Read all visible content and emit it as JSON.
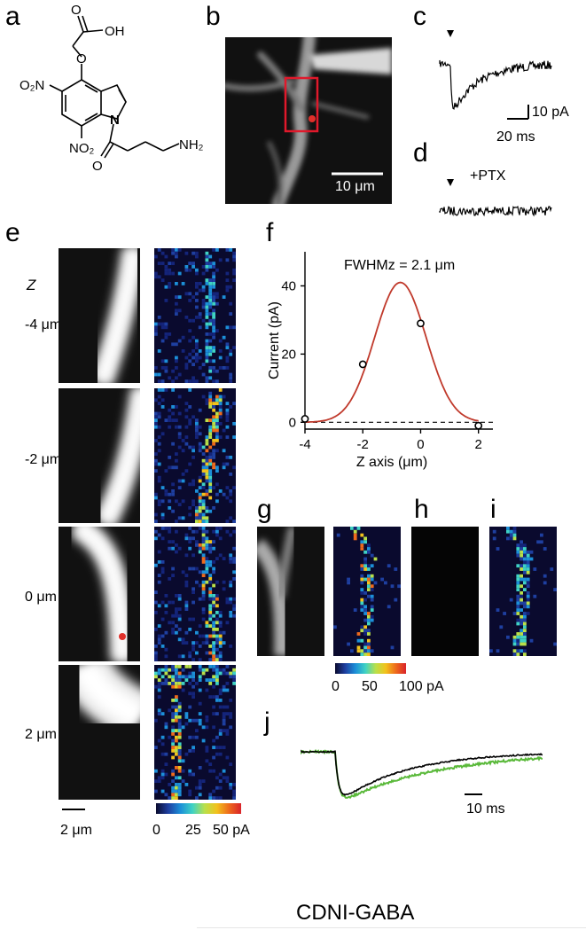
{
  "panels": {
    "a": "a",
    "b": "b",
    "c": "c",
    "d": "d",
    "e": "e",
    "f": "f",
    "g": "g",
    "h": "h",
    "i": "i",
    "j": "j"
  },
  "molecule": {
    "cooh": "OH",
    "o_link": "O",
    "o_carbonyl": "O",
    "no2_top": "O₂N",
    "no2_bottom": "NO₂",
    "n_ring": "N",
    "nh2": "NH₂"
  },
  "panel_b": {
    "scalebar": "10 μm"
  },
  "panel_c": {
    "current_scale": "10 pA",
    "time_scale": "20 ms"
  },
  "panel_d": {
    "label": "+PTX"
  },
  "panel_e": {
    "z_axis_label": "Z",
    "rows": [
      "-4 μm",
      "-2 μm",
      "0 μm",
      "2 μm"
    ],
    "scalebar": "2 μm",
    "colorbar_ticks": [
      "0",
      "25",
      "50 pA"
    ]
  },
  "panel_gi": {
    "colorbar_ticks": [
      "0",
      "50",
      "100 pA"
    ]
  },
  "panel_j": {
    "time_scale": "10 ms"
  },
  "title": "CDNI-GABA",
  "chart_data": {
    "type": "scatter",
    "annotation": "FWHMz = 2.1 μm",
    "xlabel": "Z axis (μm)",
    "ylabel": "Current (pA)",
    "xlim": [
      -4,
      2.5
    ],
    "ylim": [
      -2,
      50
    ],
    "xticks": [
      "-4",
      "-2",
      "0",
      "2"
    ],
    "yticks": [
      "0",
      "20",
      "40"
    ],
    "points": {
      "x": [
        -4,
        -2,
        0,
        2
      ],
      "y": [
        1,
        17,
        29,
        -1
      ]
    },
    "fit": {
      "type": "gaussian",
      "amplitude": 41,
      "center": -0.7,
      "fwhm": 2.1,
      "color": "#c0392b"
    },
    "baseline": 0
  }
}
